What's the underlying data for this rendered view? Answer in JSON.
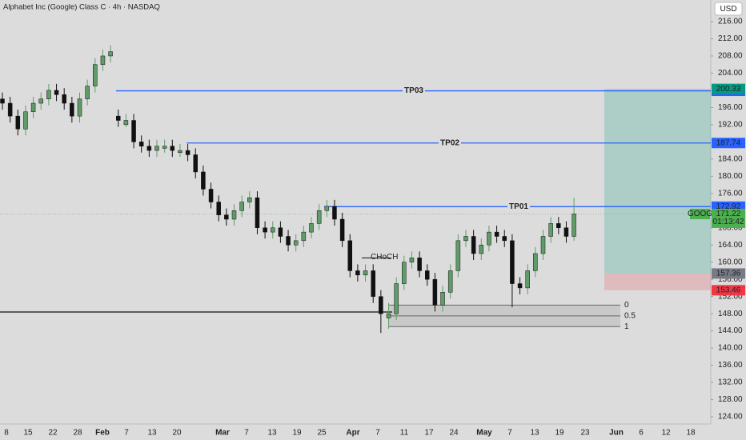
{
  "chart_data": {
    "type": "candlestick",
    "title": "Alphabet Inc (Google) Class C · 4h · NASDAQ",
    "currency": "USD",
    "up_color": "#5f9c68",
    "down_color": "#111111",
    "categories": [
      "8",
      "15",
      "22",
      "28",
      "Feb",
      "7",
      "13",
      "20",
      "Mar",
      "7",
      "13",
      "19",
      "25",
      "Apr",
      "7",
      "11",
      "17",
      "24",
      "May",
      "7",
      "13",
      "19",
      "23",
      "Jun",
      "6",
      "12",
      "18"
    ],
    "ylim": [
      124,
      216
    ],
    "yticks": [
      {
        "value": 216,
        "label": "216.00"
      },
      {
        "value": 212,
        "label": "212.00"
      },
      {
        "value": 208,
        "label": "208.00"
      },
      {
        "value": 204,
        "label": "204.00"
      },
      {
        "value": 196,
        "label": "196.00"
      },
      {
        "value": 192,
        "label": "192.00"
      },
      {
        "value": 184,
        "label": "184.00"
      },
      {
        "value": 180,
        "label": "180.00"
      },
      {
        "value": 176,
        "label": "176.00"
      },
      {
        "value": 168,
        "label": "168.00"
      },
      {
        "value": 164,
        "label": "164.00"
      },
      {
        "value": 160,
        "label": "160.00"
      },
      {
        "value": 156,
        "label": "156.00"
      },
      {
        "value": 152,
        "label": "152.00"
      },
      {
        "value": 148,
        "label": "148.00"
      },
      {
        "value": 144,
        "label": "144.00"
      },
      {
        "value": 140,
        "label": "140.00"
      },
      {
        "value": 136,
        "label": "136.00"
      },
      {
        "value": 132,
        "label": "132.00"
      },
      {
        "value": 128,
        "label": "128.00"
      },
      {
        "value": 124,
        "label": "124.00"
      }
    ],
    "ohlc": [
      [
        198,
        199.5,
        195.5,
        197
      ],
      [
        197,
        198.5,
        192.5,
        194
      ],
      [
        194,
        195.5,
        189.5,
        191
      ],
      [
        191,
        196.5,
        189.5,
        195
      ],
      [
        195,
        198.5,
        193.5,
        197
      ],
      [
        197,
        199.5,
        195.5,
        198
      ],
      [
        198,
        201.5,
        196.5,
        200
      ],
      [
        200,
        201.5,
        197.5,
        199
      ],
      [
        199,
        200.5,
        195.5,
        197
      ],
      [
        197,
        198.5,
        192.5,
        194
      ],
      [
        194,
        199.5,
        192.5,
        198
      ],
      [
        198,
        202.5,
        196.5,
        201
      ],
      [
        201,
        207.5,
        199.5,
        206
      ],
      [
        206,
        209.5,
        204.5,
        208
      ],
      [
        208,
        210.5,
        206.5,
        209
      ],
      [
        194,
        195.5,
        191.5,
        193
      ],
      [
        192,
        194.5,
        191.5,
        193
      ],
      [
        193,
        194.5,
        186.5,
        188
      ],
      [
        188,
        189.5,
        185.5,
        187
      ],
      [
        187,
        188.5,
        184.5,
        186
      ],
      [
        186,
        188.5,
        184.5,
        187
      ],
      [
        186.5,
        188.5,
        185.5,
        187
      ],
      [
        187,
        188.5,
        184.5,
        186
      ],
      [
        185.5,
        187.5,
        184.5,
        186
      ],
      [
        186,
        187.5,
        183.5,
        185
      ],
      [
        185,
        186.5,
        179.5,
        181
      ],
      [
        181,
        182.5,
        175.5,
        177
      ],
      [
        177,
        178.5,
        172.5,
        174
      ],
      [
        174,
        175.5,
        169.5,
        171
      ],
      [
        171,
        172.5,
        168.5,
        170
      ],
      [
        170,
        173.5,
        168.5,
        172
      ],
      [
        172,
        175.5,
        170.5,
        174
      ],
      [
        174,
        176.5,
        172.5,
        175
      ],
      [
        175,
        176.5,
        166.5,
        168
      ],
      [
        168,
        169.5,
        165.5,
        167
      ],
      [
        167,
        169.5,
        165.5,
        168
      ],
      [
        168,
        169.5,
        164.5,
        166
      ],
      [
        166,
        167.5,
        162.5,
        164
      ],
      [
        164,
        166.5,
        162.5,
        165
      ],
      [
        165,
        168.5,
        163.5,
        167
      ],
      [
        167,
        170.5,
        165.5,
        169
      ],
      [
        169,
        173.5,
        167.5,
        172
      ],
      [
        172,
        174.5,
        170.5,
        173
      ],
      [
        173,
        174.5,
        168.5,
        170
      ],
      [
        170,
        171.5,
        163.5,
        165
      ],
      [
        165,
        166.5,
        156.5,
        158
      ],
      [
        158,
        159.5,
        155.5,
        157
      ],
      [
        157,
        159.5,
        155.5,
        158
      ],
      [
        158,
        159.5,
        150.5,
        152
      ],
      [
        152,
        153.5,
        143.5,
        148
      ],
      [
        147,
        150.5,
        144.5,
        148
      ],
      [
        148,
        156.5,
        146.5,
        155
      ],
      [
        155,
        161.5,
        153.5,
        160
      ],
      [
        160,
        162.5,
        158.5,
        161
      ],
      [
        161,
        162.5,
        156.5,
        158
      ],
      [
        158,
        159.5,
        154.5,
        156
      ],
      [
        156,
        157.5,
        148.5,
        150
      ],
      [
        150,
        154.5,
        148.5,
        153
      ],
      [
        153,
        159.5,
        151.5,
        158
      ],
      [
        158,
        166.5,
        156.5,
        165
      ],
      [
        165,
        167.5,
        163.5,
        166
      ],
      [
        166,
        167.5,
        160.5,
        162
      ],
      [
        162,
        165.5,
        160.5,
        164
      ],
      [
        164,
        168.5,
        162.5,
        167
      ],
      [
        167,
        168.5,
        164.5,
        166
      ],
      [
        166,
        167.5,
        163.5,
        165
      ],
      [
        165,
        166.5,
        149.5,
        155
      ],
      [
        155,
        156.5,
        152.5,
        154
      ],
      [
        154,
        159.5,
        152.5,
        158
      ],
      [
        158,
        163.5,
        156.5,
        162
      ],
      [
        162,
        167.5,
        160.5,
        166
      ],
      [
        166,
        170.5,
        164.5,
        169
      ],
      [
        169,
        170.5,
        166.5,
        168
      ],
      [
        168,
        169.5,
        164.5,
        166
      ],
      [
        166,
        175,
        165,
        171.22
      ]
    ],
    "levels": [
      {
        "name": "TP03",
        "value": 199.88,
        "color": "#2962ff"
      },
      {
        "name": "TP02",
        "value": 187.74,
        "color": "#2962ff"
      },
      {
        "name": "TP01",
        "value": 172.92,
        "color": "#2962ff"
      }
    ],
    "position": {
      "target": 200.33,
      "entry": 157.36,
      "stop": 153.46,
      "target_color": "#089981",
      "entry_color": "#787b86",
      "stop_color": "#f23645"
    },
    "last_price": {
      "symbol": "GOOG",
      "value": 171.22,
      "countdown": "01:13:42",
      "color": "#4caf50"
    },
    "annotation": {
      "text": "CHoCH",
      "value": 161
    },
    "support": 148.4,
    "fib": [
      {
        "ratio": 0,
        "price": 150
      },
      {
        "ratio": 0.5,
        "price": 147.5
      },
      {
        "ratio": 1,
        "price": 145
      }
    ]
  }
}
